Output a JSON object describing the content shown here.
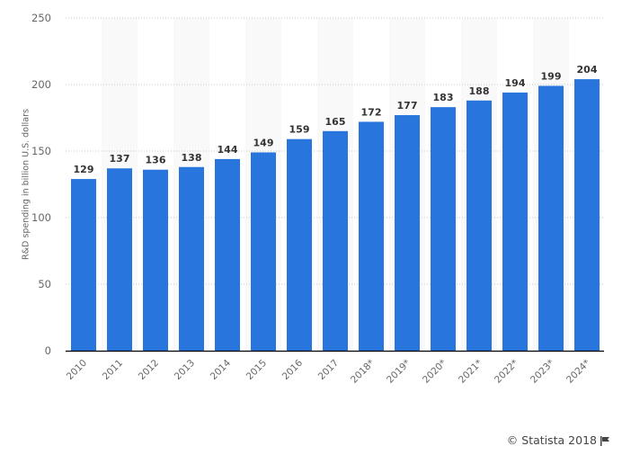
{
  "chart_data": {
    "type": "bar",
    "title": "",
    "xlabel": "",
    "ylabel": "R&D spending in billion U.S. dollars",
    "ylim": [
      0,
      250
    ],
    "yticks": [
      0,
      50,
      100,
      150,
      200,
      250
    ],
    "grid": true,
    "legend": null,
    "categories": [
      "2010",
      "2011",
      "2012",
      "2013",
      "2014",
      "2015",
      "2016",
      "2017",
      "2018*",
      "2019*",
      "2020*",
      "2021*",
      "2022*",
      "2023*",
      "2024*"
    ],
    "values": [
      129,
      137,
      136,
      138,
      144,
      149,
      159,
      165,
      172,
      177,
      183,
      188,
      194,
      199,
      204
    ],
    "bar_color": "#2876dd",
    "data_labels": true
  },
  "footer": {
    "copyright": "© Statista 2018",
    "flag_icon": "flag-icon"
  },
  "colors": {
    "bar": "#2876dd",
    "alt_column_bg": "#f9f9f9",
    "gridline": "#c8c8c8",
    "axis": "#000000",
    "label_text": "#333333",
    "tick_text": "#666666"
  }
}
